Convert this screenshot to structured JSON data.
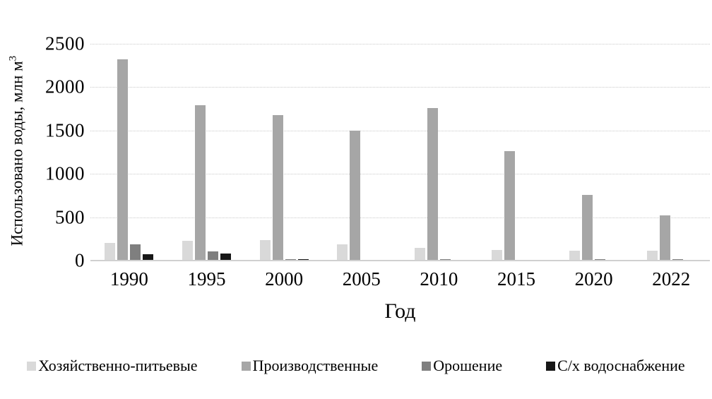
{
  "chart_data": {
    "type": "bar",
    "categories": [
      "1990",
      "1995",
      "2000",
      "2005",
      "2010",
      "2015",
      "2020",
      "2022"
    ],
    "series": [
      {
        "name": "Хозяйственно-питьевые",
        "color": "#d9d9d9",
        "values": [
          205,
          225,
          240,
          190,
          150,
          125,
          110,
          115
        ]
      },
      {
        "name": "Производственные",
        "color": "#a6a6a6",
        "values": [
          2320,
          1790,
          1680,
          1500,
          1760,
          1260,
          760,
          525
        ]
      },
      {
        "name": "Орошение",
        "color": "#7f7f7f",
        "values": [
          185,
          105,
          20,
          0,
          15,
          0,
          15,
          15
        ]
      },
      {
        "name": "С/х водоснабжение",
        "color": "#171717",
        "values": [
          75,
          85,
          15,
          0,
          0,
          0,
          0,
          0
        ]
      }
    ],
    "title": "",
    "xlabel": "Год",
    "ylabel": "Использовано воды, млн м³",
    "ylabel_base": "Использовано воды, млн м",
    "ylabel_sup": "3",
    "ylim": [
      0,
      2500
    ],
    "y_ticks": [
      "0",
      "500",
      "1000",
      "1500",
      "2000",
      "2500"
    ],
    "grid": "horizontal-dotted",
    "legend_position": "bottom"
  }
}
